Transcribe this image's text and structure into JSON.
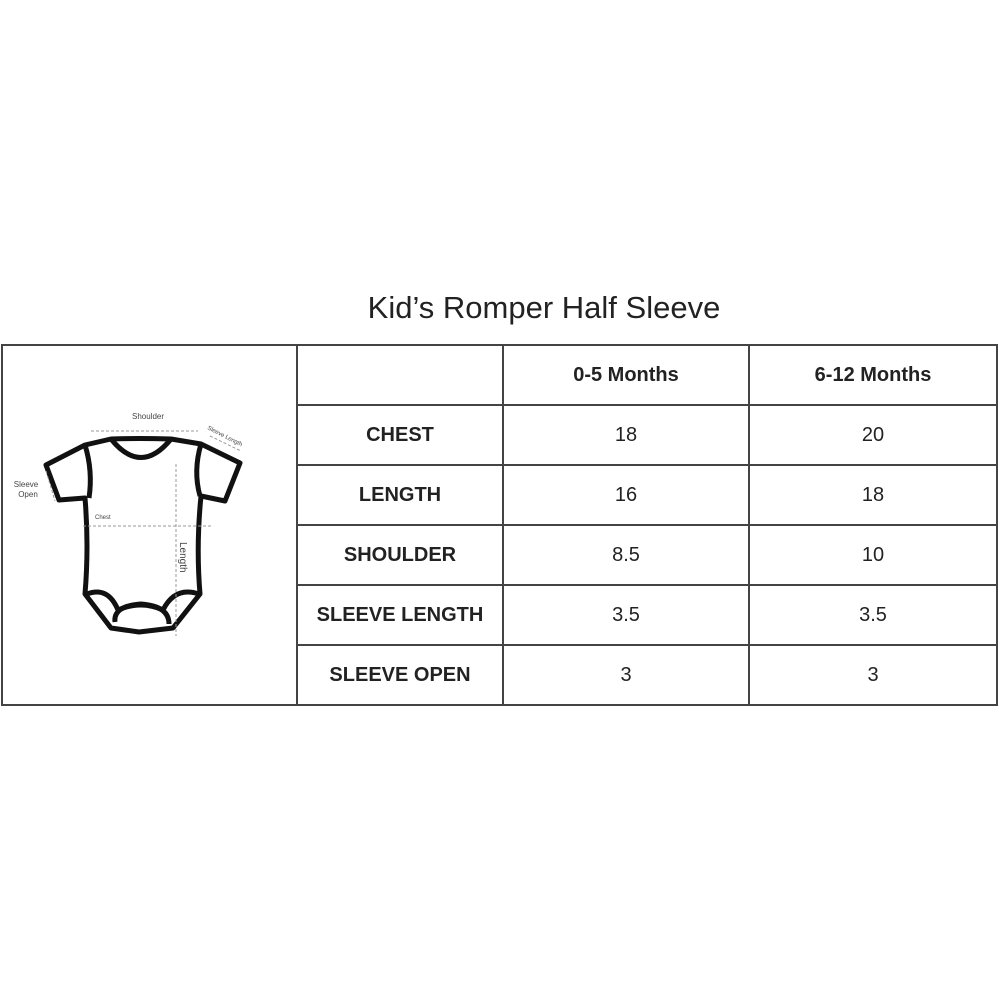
{
  "title": "Kid’s Romper Half Sleeve",
  "diagram": {
    "labels": {
      "shoulder": "Shoulder",
      "sleeve_length": "Sleeve Length",
      "sleeve_open_1": "Sleeve",
      "sleeve_open_2": "Open",
      "chest": "Chest",
      "length": "Length"
    }
  },
  "table": {
    "columns": [
      "",
      "0-5 Months",
      "6-12 Months"
    ],
    "rows": [
      {
        "label": "CHEST",
        "values": [
          "18",
          "20"
        ]
      },
      {
        "label": "LENGTH",
        "values": [
          "16",
          "18"
        ]
      },
      {
        "label": "SHOULDER",
        "values": [
          "8.5",
          "10"
        ]
      },
      {
        "label": "SLEEVE LENGTH",
        "values": [
          "3.5",
          "3.5"
        ]
      },
      {
        "label": "SLEEVE OPEN",
        "values": [
          "3",
          "3"
        ]
      }
    ]
  }
}
